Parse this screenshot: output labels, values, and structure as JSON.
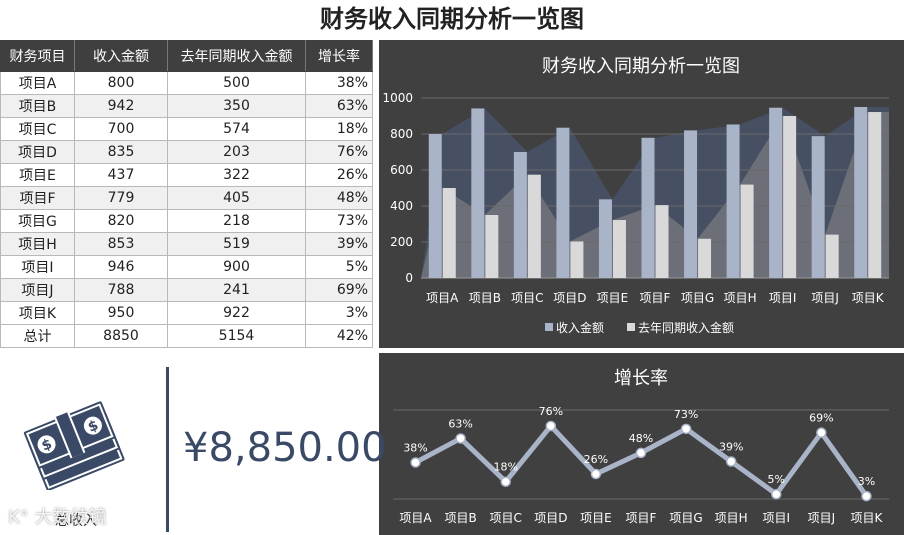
{
  "page_title": "财务收入同期分析一览图",
  "table": {
    "headers": [
      "财务项目",
      "收入金额",
      "去年同期收入金额",
      "增长率"
    ],
    "rows": [
      [
        "项目A",
        "800",
        "500",
        "38%"
      ],
      [
        "项目B",
        "942",
        "350",
        "63%"
      ],
      [
        "项目C",
        "700",
        "574",
        "18%"
      ],
      [
        "项目D",
        "835",
        "203",
        "76%"
      ],
      [
        "项目E",
        "437",
        "322",
        "26%"
      ],
      [
        "项目F",
        "779",
        "405",
        "48%"
      ],
      [
        "项目G",
        "820",
        "218",
        "73%"
      ],
      [
        "项目H",
        "853",
        "519",
        "39%"
      ],
      [
        "项目I",
        "946",
        "900",
        "5%"
      ],
      [
        "项目J",
        "788",
        "241",
        "69%"
      ],
      [
        "项目K",
        "950",
        "922",
        "3%"
      ]
    ],
    "total_row": [
      "总计",
      "8850",
      "5154",
      "42%"
    ]
  },
  "total_widget": {
    "value": "¥8,850.00",
    "label": "总收入",
    "icon": "money-stack-icon",
    "watermark": "K° 大数续镜"
  },
  "colors": {
    "panel_bg": "#404040",
    "income": "#a9b4c8",
    "last_year": "#d9d9d9",
    "accent": "#3a4a66"
  },
  "chart_data": [
    {
      "type": "bar",
      "title": "财务收入同期分析一览图",
      "categories": [
        "项目A",
        "项目B",
        "项目C",
        "项目D",
        "项目E",
        "项目F",
        "项目G",
        "项目H",
        "项目I",
        "项目J",
        "项目K"
      ],
      "series": [
        {
          "name": "收入金额",
          "values": [
            800,
            942,
            700,
            835,
            437,
            779,
            820,
            853,
            946,
            788,
            950
          ],
          "color": "#a9b4c8"
        },
        {
          "name": "去年同期收入金额",
          "values": [
            500,
            350,
            574,
            203,
            322,
            405,
            218,
            519,
            900,
            241,
            922
          ],
          "color": "#d9d9d9"
        }
      ],
      "yticks": [
        "0",
        "200",
        "400",
        "600",
        "800",
        "1000"
      ],
      "ylim": [
        0,
        1000
      ],
      "grid": true,
      "legend": "bottom",
      "background_area": true
    },
    {
      "type": "line",
      "title": "增长率",
      "categories": [
        "项目A",
        "项目B",
        "项目C",
        "项目D",
        "项目E",
        "项目F",
        "项目G",
        "项目H",
        "项目I",
        "项目J",
        "项目K"
      ],
      "values": [
        0.38,
        0.63,
        0.18,
        0.76,
        0.26,
        0.48,
        0.73,
        0.39,
        0.05,
        0.69,
        0.03
      ],
      "labels": [
        "38%",
        "63%",
        "18%",
        "76%",
        "26%",
        "48%",
        "73%",
        "39%",
        "5%",
        "69%",
        "3%"
      ],
      "ylim": [
        0,
        1
      ],
      "grid": true,
      "color": "#a9b4c8"
    }
  ]
}
